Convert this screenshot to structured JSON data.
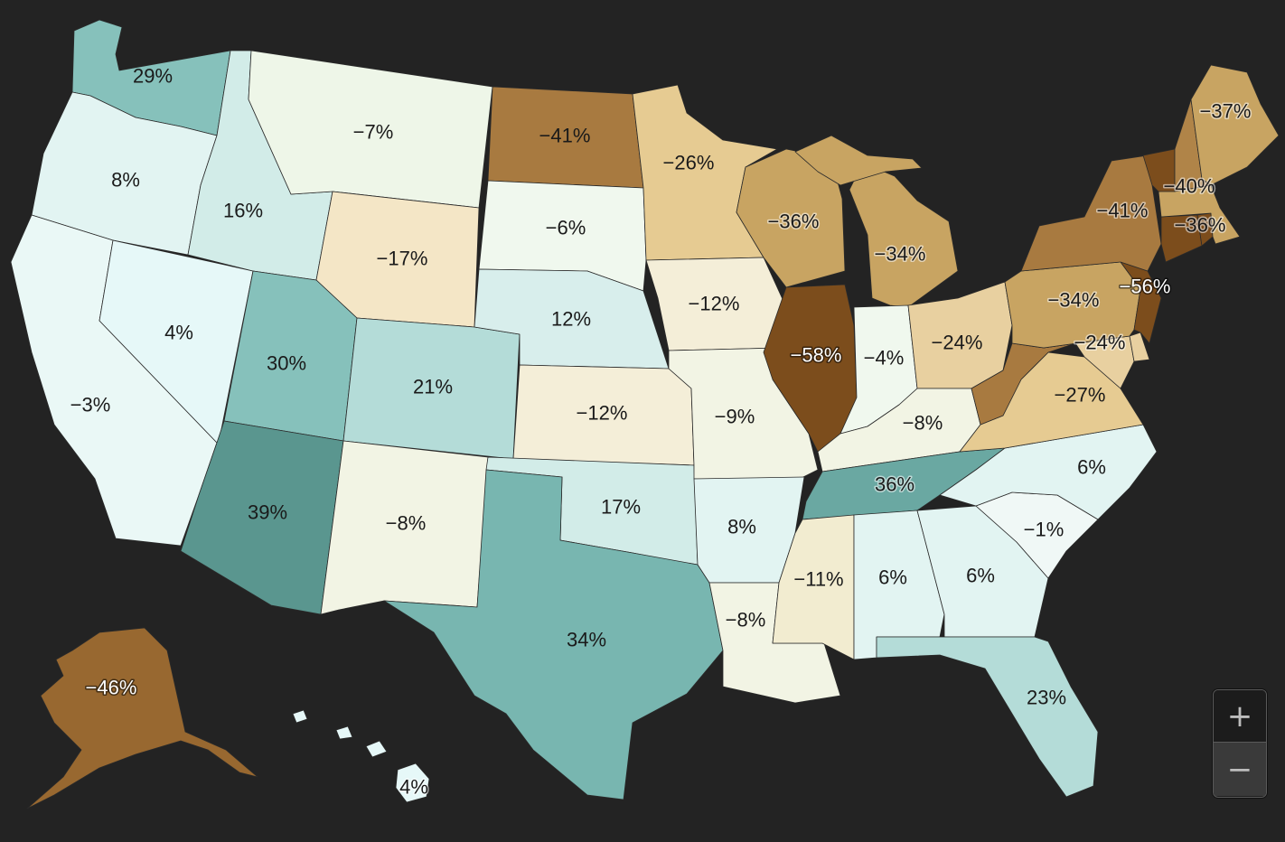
{
  "colors": {
    "background": "#232323",
    "teal_strong": "#5a968f",
    "teal": "#78b6b0",
    "teal_mid": "#86c1bb",
    "teal_light": "#b4dcd8",
    "teal_pale": "#d2ece8",
    "cyan_pale": "#e6f8f8",
    "neutral_pale": "#eef6e8",
    "cream": "#f4e9c8",
    "tan_light": "#e6cb92",
    "tan": "#c8a462",
    "brown": "#a87a40",
    "brown_dark": "#7c4d1c"
  },
  "zoom": {
    "in_label": "+",
    "out_label": "−"
  },
  "states": [
    {
      "id": "WA",
      "value": "29%",
      "color": "#86c1bb"
    },
    {
      "id": "OR",
      "value": "8%",
      "color": "#e2f4f2"
    },
    {
      "id": "CA",
      "value": "−3%",
      "color": "#eaf8f6"
    },
    {
      "id": "NV",
      "value": "4%",
      "color": "#e6f8f8"
    },
    {
      "id": "ID",
      "value": "16%",
      "color": "#d2ece8"
    },
    {
      "id": "MT",
      "value": "−7%",
      "color": "#eef6e8"
    },
    {
      "id": "WY",
      "value": "−17%",
      "color": "#f4e6c6"
    },
    {
      "id": "UT",
      "value": "30%",
      "color": "#86c1bb"
    },
    {
      "id": "CO",
      "value": "21%",
      "color": "#b4dcd8"
    },
    {
      "id": "AZ",
      "value": "39%",
      "color": "#5a968f"
    },
    {
      "id": "NM",
      "value": "−8%",
      "color": "#f2f4e4"
    },
    {
      "id": "ND",
      "value": "−41%",
      "color": "#a87a40"
    },
    {
      "id": "SD",
      "value": "−6%",
      "color": "#f0f8ee"
    },
    {
      "id": "NE",
      "value": "12%",
      "color": "#d8eeec"
    },
    {
      "id": "KS",
      "value": "−12%",
      "color": "#f4eed8"
    },
    {
      "id": "OK",
      "value": "17%",
      "color": "#d2ece8"
    },
    {
      "id": "TX",
      "value": "34%",
      "color": "#78b6b0"
    },
    {
      "id": "MN",
      "value": "−26%",
      "color": "#e6cb92"
    },
    {
      "id": "IA",
      "value": "−12%",
      "color": "#f4eed8"
    },
    {
      "id": "MO",
      "value": "−9%",
      "color": "#f2f4e4"
    },
    {
      "id": "AR",
      "value": "8%",
      "color": "#e2f4f2"
    },
    {
      "id": "LA",
      "value": "−8%",
      "color": "#f2f4e4"
    },
    {
      "id": "WI",
      "value": "−36%",
      "color": "#c8a462"
    },
    {
      "id": "IL",
      "value": "−58%",
      "color": "#7c4d1c"
    },
    {
      "id": "MI",
      "value": "−34%",
      "color": "#c8a462"
    },
    {
      "id": "IN",
      "value": "−4%",
      "color": "#f0f8ee"
    },
    {
      "id": "OH",
      "value": "−24%",
      "color": "#e8d0a0"
    },
    {
      "id": "KY",
      "value": "−8%",
      "color": "#f2f4e4"
    },
    {
      "id": "TN",
      "value": "36%",
      "color": "#6aa8a2"
    },
    {
      "id": "MS",
      "value": "−11%",
      "color": "#f2ecd0"
    },
    {
      "id": "AL",
      "value": "6%",
      "color": "#e2f4f2"
    },
    {
      "id": "GA",
      "value": "6%",
      "color": "#e2f4f2"
    },
    {
      "id": "FL",
      "value": "23%",
      "color": "#b4dcd8"
    },
    {
      "id": "SC",
      "value": "−1%",
      "color": "#f0f8f6"
    },
    {
      "id": "NC",
      "value": "6%",
      "color": "#e2f4f2"
    },
    {
      "id": "VA",
      "value": "−27%",
      "color": "#e6cb92"
    },
    {
      "id": "WV",
      "value": "",
      "color": "#a87a40"
    },
    {
      "id": "MD",
      "value": "−24%",
      "color": "#e8d0a0"
    },
    {
      "id": "DE",
      "value": "",
      "color": "#e8d0a0"
    },
    {
      "id": "PA",
      "value": "−34%",
      "color": "#c8a462"
    },
    {
      "id": "NJ",
      "value": "−56%",
      "color": "#7c4d1c"
    },
    {
      "id": "NY",
      "value": "−41%",
      "color": "#a87a40"
    },
    {
      "id": "CT",
      "value": "",
      "color": "#7c4d1c"
    },
    {
      "id": "RI",
      "value": "",
      "color": "#7c4d1c"
    },
    {
      "id": "MA",
      "value": "−36%",
      "color": "#c8a462"
    },
    {
      "id": "VT",
      "value": "",
      "color": "#7c4d1c"
    },
    {
      "id": "NH",
      "value": "−40%",
      "color": "#b08448"
    },
    {
      "id": "ME",
      "value": "−37%",
      "color": "#c8a462"
    },
    {
      "id": "AK",
      "value": "−46%",
      "color": "#986830"
    },
    {
      "id": "HI",
      "value": "4%",
      "color": "#e6f8f8"
    }
  ]
}
